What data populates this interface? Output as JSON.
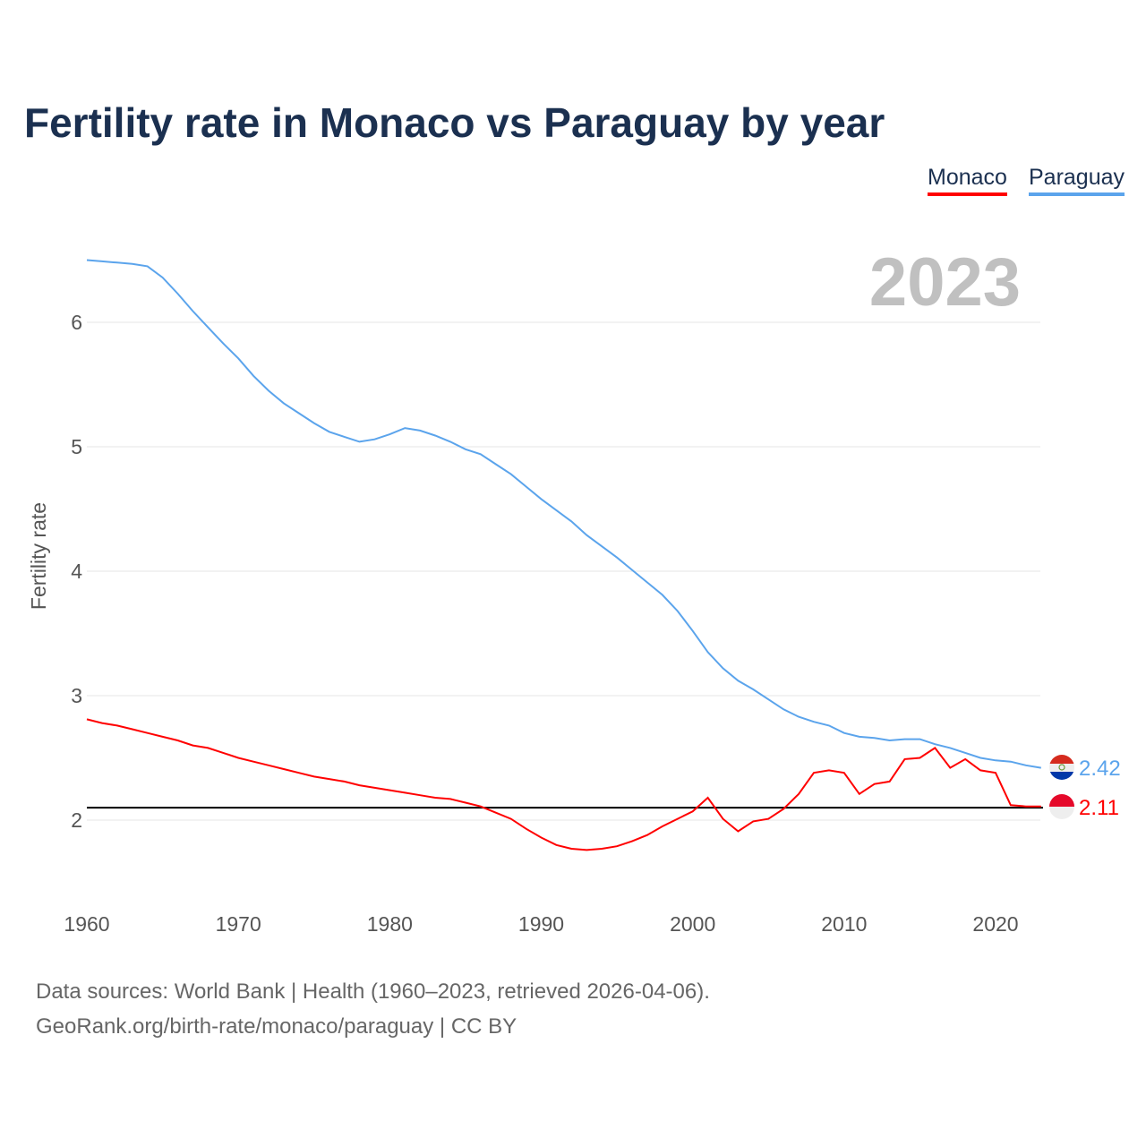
{
  "title": "Fertility rate in Monaco vs Paraguay by year",
  "legend": {
    "monaco": "Monaco",
    "paraguay": "Paraguay"
  },
  "footer": {
    "line1": "Data sources: World Bank | Health (1960–2023, retrieved 2026-04-06).",
    "line2": "GeoRank.org/birth-rate/monaco/paraguay | CC BY"
  },
  "chart_data": {
    "type": "line",
    "title": "Fertility rate in Monaco vs Paraguay by year",
    "year_label": "2023",
    "xlabel": "",
    "ylabel": "Fertility rate",
    "xlim": [
      1960,
      2023
    ],
    "ylim": [
      1.5,
      6.5
    ],
    "x_ticks": [
      1960,
      1970,
      1980,
      1990,
      2000,
      2010,
      2020
    ],
    "y_ticks": [
      2,
      3,
      4,
      5,
      6
    ],
    "reference_line": 2.1,
    "grid": true,
    "legend_position": "top-right",
    "x": [
      1960,
      1961,
      1962,
      1963,
      1964,
      1965,
      1966,
      1967,
      1968,
      1969,
      1970,
      1971,
      1972,
      1973,
      1974,
      1975,
      1976,
      1977,
      1978,
      1979,
      1980,
      1981,
      1982,
      1983,
      1984,
      1985,
      1986,
      1987,
      1988,
      1989,
      1990,
      1991,
      1992,
      1993,
      1994,
      1995,
      1996,
      1997,
      1998,
      1999,
      2000,
      2001,
      2002,
      2003,
      2004,
      2005,
      2006,
      2007,
      2008,
      2009,
      2010,
      2011,
      2012,
      2013,
      2014,
      2015,
      2016,
      2017,
      2018,
      2019,
      2020,
      2021,
      2022,
      2023
    ],
    "series": [
      {
        "name": "Monaco",
        "color": "#ff0000",
        "end_label": "2.11",
        "values": [
          2.81,
          2.78,
          2.76,
          2.73,
          2.7,
          2.67,
          2.64,
          2.6,
          2.58,
          2.54,
          2.5,
          2.47,
          2.44,
          2.41,
          2.38,
          2.35,
          2.33,
          2.31,
          2.28,
          2.26,
          2.24,
          2.22,
          2.2,
          2.18,
          2.17,
          2.14,
          2.11,
          2.06,
          2.01,
          1.93,
          1.86,
          1.8,
          1.77,
          1.76,
          1.77,
          1.79,
          1.83,
          1.88,
          1.95,
          2.01,
          2.07,
          2.18,
          2.01,
          1.91,
          1.99,
          2.01,
          2.09,
          2.21,
          2.38,
          2.4,
          2.38,
          2.21,
          2.29,
          2.31,
          2.49,
          2.5,
          2.58,
          2.42,
          2.49,
          2.4,
          2.38,
          2.12,
          2.11,
          2.11
        ]
      },
      {
        "name": "Paraguay",
        "color": "#5ba4ec",
        "end_label": "2.42",
        "values": [
          6.5,
          6.49,
          6.48,
          6.47,
          6.45,
          6.36,
          6.23,
          6.09,
          5.96,
          5.83,
          5.71,
          5.57,
          5.45,
          5.35,
          5.27,
          5.19,
          5.12,
          5.08,
          5.04,
          5.06,
          5.1,
          5.15,
          5.13,
          5.09,
          5.04,
          4.98,
          4.94,
          4.86,
          4.78,
          4.68,
          4.58,
          4.49,
          4.4,
          4.29,
          4.2,
          4.11,
          4.01,
          3.91,
          3.81,
          3.68,
          3.52,
          3.35,
          3.22,
          3.12,
          3.05,
          2.97,
          2.89,
          2.83,
          2.79,
          2.76,
          2.7,
          2.67,
          2.66,
          2.64,
          2.65,
          2.65,
          2.61,
          2.58,
          2.54,
          2.5,
          2.48,
          2.47,
          2.44,
          2.42
        ]
      }
    ]
  }
}
